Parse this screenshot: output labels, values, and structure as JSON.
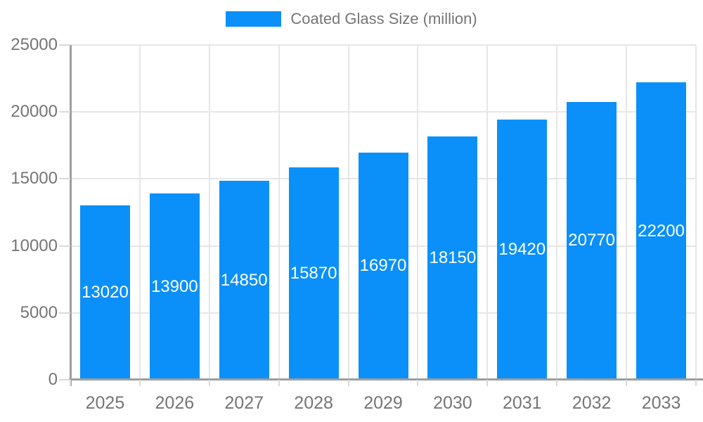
{
  "chart_data": {
    "type": "bar",
    "title": "Coated Glass Size (million)",
    "legend": {
      "position": "top",
      "entries": [
        "Coated Glass Size (million)"
      ]
    },
    "categories": [
      "2025",
      "2026",
      "2027",
      "2028",
      "2029",
      "2030",
      "2031",
      "2032",
      "2033"
    ],
    "values": [
      13020,
      13900,
      14850,
      15870,
      16970,
      18150,
      19420,
      20770,
      22200
    ],
    "value_labels": [
      "13020",
      "13900",
      "14850",
      "15870",
      "16970",
      "18150",
      "19420",
      "20770",
      "22200"
    ],
    "xlabel": "",
    "ylabel": "",
    "ylim": [
      0,
      25000
    ],
    "ytick_step": 5000,
    "yticks": [
      "0",
      "5000",
      "10000",
      "15000",
      "20000",
      "25000"
    ],
    "grid": true,
    "bar_color": "#0b90f9",
    "bar_label_color": "#ffffff",
    "axis_text_color": "#757575",
    "axis_line_color": "#9e9e9e",
    "gridline_color": "#e6e6e6"
  }
}
